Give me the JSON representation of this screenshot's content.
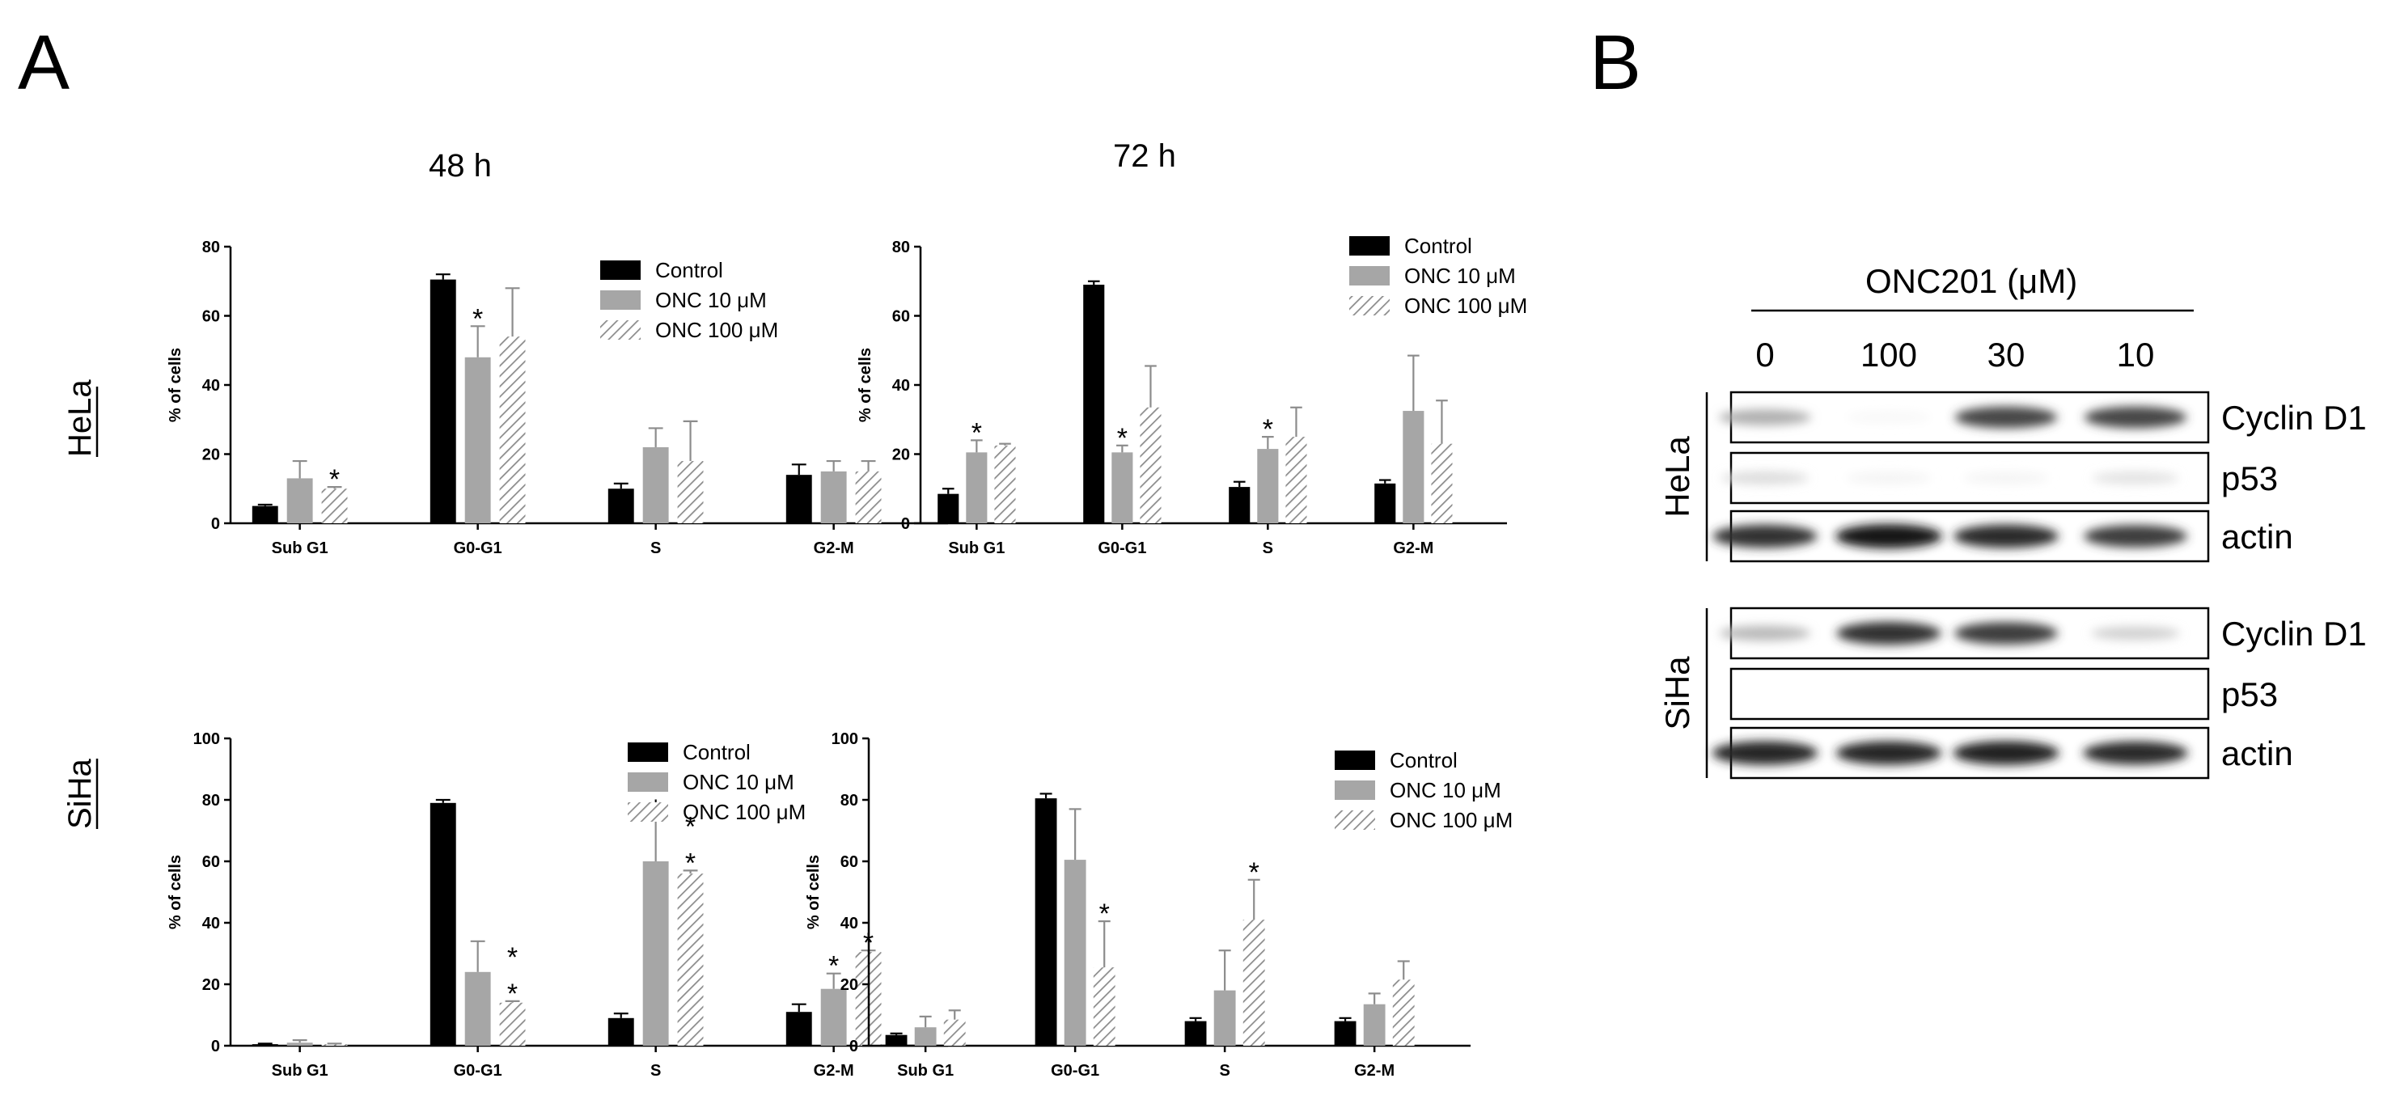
{
  "panels": {
    "a_label": "A",
    "b_label": "B"
  },
  "time_labels": {
    "t48": "48 h",
    "t72": "72 h"
  },
  "row_labels": {
    "hela": "HeLa",
    "siha": "SiHa"
  },
  "colors": {
    "control": "#000000",
    "onc10": "#a6a6a6",
    "onc100_stroke": "#8c8c8c",
    "axis": "#000000"
  },
  "chart_data": [
    {
      "type": "bar",
      "id": "hela-48",
      "title": "48 h",
      "row": "HeLa",
      "categories": [
        "Sub G1",
        "G0-G1",
        "S",
        "G2-M"
      ],
      "ylabel": "% of cells",
      "ylim": [
        0,
        80
      ],
      "yticks": [
        0,
        20,
        40,
        60,
        80
      ],
      "legend": [
        "Control",
        "ONC 10 μM",
        "ONC 100 μM"
      ],
      "legend_position": "top-right",
      "series": [
        {
          "name": "Control",
          "values": [
            5,
            70.5,
            10,
            14
          ],
          "errors": [
            0.4,
            1.5,
            1.5,
            3
          ]
        },
        {
          "name": "ONC 10 μM",
          "values": [
            13,
            48,
            22,
            15
          ],
          "errors": [
            5,
            9,
            5.5,
            3
          ]
        },
        {
          "name": "ONC 100 μM",
          "values": [
            10,
            54,
            18,
            15
          ],
          "errors": [
            0.5,
            14,
            11.5,
            3
          ]
        }
      ],
      "stars": [
        {
          "category": 0,
          "series": 2,
          "marks": [
            "*"
          ]
        },
        {
          "category": 1,
          "series": 1,
          "marks": [
            "*"
          ]
        }
      ]
    },
    {
      "type": "bar",
      "id": "hela-72",
      "title": "72 h",
      "row": "HeLa",
      "categories": [
        "Sub G1",
        "G0-G1",
        "S",
        "G2-M"
      ],
      "ylabel": "% of cells",
      "ylim": [
        0,
        80
      ],
      "yticks": [
        0,
        20,
        40,
        60,
        80
      ],
      "legend": [
        "Control",
        "ONC 10 μM",
        "ONC 100 μM"
      ],
      "legend_position": "top-right",
      "series": [
        {
          "name": "Control",
          "values": [
            8.5,
            69,
            10.5,
            11.5
          ],
          "errors": [
            1.5,
            1,
            1.5,
            1
          ]
        },
        {
          "name": "ONC 10 μM",
          "values": [
            20.5,
            20.5,
            21.5,
            32.5
          ],
          "errors": [
            3.5,
            2,
            3.5,
            16
          ]
        },
        {
          "name": "ONC 100 μM",
          "values": [
            22.5,
            33.5,
            25,
            23
          ],
          "errors": [
            0.5,
            12,
            8.5,
            12.5
          ]
        }
      ],
      "stars": [
        {
          "category": 0,
          "series": 1,
          "marks": [
            "*"
          ]
        },
        {
          "category": 1,
          "series": 1,
          "marks": [
            "*"
          ]
        },
        {
          "category": 2,
          "series": 1,
          "marks": [
            "*"
          ]
        }
      ]
    },
    {
      "type": "bar",
      "id": "siha-48",
      "title": "48 h",
      "row": "SiHa",
      "categories": [
        "Sub G1",
        "G0-G1",
        "S",
        "G2-M"
      ],
      "ylabel": "% of cells",
      "ylim": [
        0,
        100
      ],
      "yticks": [
        0,
        20,
        40,
        60,
        80,
        100
      ],
      "legend": [
        "Control",
        "ONC 10 μM",
        "ONC 100 μM"
      ],
      "legend_position": "top-right",
      "series": [
        {
          "name": "Control",
          "values": [
            0.5,
            79,
            9,
            11
          ],
          "errors": [
            0.2,
            1,
            1.5,
            2.5
          ]
        },
        {
          "name": "ONC 10 μM",
          "values": [
            1,
            24,
            60,
            18.5
          ],
          "errors": [
            0.8,
            10,
            14.5,
            5
          ]
        },
        {
          "name": "ONC 100 μM",
          "values": [
            0.5,
            14,
            56,
            30.5
          ],
          "errors": [
            0.2,
            0.5,
            1,
            0.5
          ]
        }
      ],
      "stars": [
        {
          "category": 1,
          "series": 2,
          "marks": [
            "*",
            "*"
          ]
        },
        {
          "category": 2,
          "series": 1,
          "marks": [
            "*"
          ]
        },
        {
          "category": 2,
          "series": 2,
          "marks": [
            "*",
            "*"
          ]
        },
        {
          "category": 3,
          "series": 1,
          "marks": [
            "*"
          ]
        },
        {
          "category": 3,
          "series": 2,
          "marks": [
            "*"
          ]
        }
      ]
    },
    {
      "type": "bar",
      "id": "siha-72",
      "title": "72 h",
      "row": "SiHa",
      "categories": [
        "Sub G1",
        "G0-G1",
        "S",
        "G2-M"
      ],
      "ylabel": "% of cells",
      "ylim": [
        0,
        100
      ],
      "yticks": [
        0,
        20,
        40,
        60,
        80,
        100
      ],
      "legend": [
        "Control",
        "ONC 10 μM",
        "ONC 100 μM"
      ],
      "legend_position": "top-right",
      "series": [
        {
          "name": "Control",
          "values": [
            3.5,
            80.5,
            8,
            8
          ],
          "errors": [
            0.5,
            1.5,
            1,
            1
          ]
        },
        {
          "name": "ONC 10 μM",
          "values": [
            6,
            60.5,
            18,
            13.5
          ],
          "errors": [
            3.5,
            16.5,
            13,
            3.5
          ]
        },
        {
          "name": "ONC 100 μM",
          "values": [
            8.5,
            25.5,
            41,
            21.5
          ],
          "errors": [
            3,
            15,
            13,
            6
          ]
        }
      ],
      "stars": [
        {
          "category": 1,
          "series": 2,
          "marks": [
            "*"
          ]
        },
        {
          "category": 2,
          "series": 2,
          "marks": [
            "*"
          ]
        }
      ]
    }
  ],
  "western_blot": {
    "title": "ONC201 (μM)",
    "lanes": [
      "0",
      "100",
      "30",
      "10"
    ],
    "groups": [
      {
        "name": "HeLa",
        "strips": [
          {
            "label": "Cyclin D1",
            "intensities": [
              0.35,
              0.03,
              0.8,
              0.8
            ]
          },
          {
            "label": "p53",
            "intensities": [
              0.15,
              0.05,
              0.05,
              0.12
            ]
          },
          {
            "label": "actin",
            "intensities": [
              0.9,
              1.0,
              0.92,
              0.85
            ]
          }
        ]
      },
      {
        "name": "SiHa",
        "strips": [
          {
            "label": "Cyclin D1",
            "intensities": [
              0.3,
              0.9,
              0.85,
              0.2
            ]
          },
          {
            "label": "p53",
            "intensities": [
              0.02,
              0.02,
              0.02,
              0.02
            ]
          },
          {
            "label": "actin",
            "intensities": [
              0.95,
              0.95,
              0.97,
              0.92
            ]
          }
        ]
      }
    ]
  }
}
